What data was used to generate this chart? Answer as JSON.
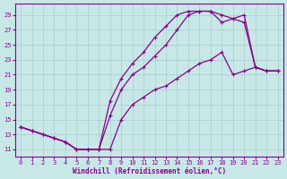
{
  "xlabel": "Windchill (Refroidissement éolien,°C)",
  "xlim": [
    -0.5,
    23.5
  ],
  "ylim": [
    10.0,
    30.5
  ],
  "xticks": [
    0,
    1,
    2,
    3,
    4,
    5,
    6,
    7,
    8,
    9,
    10,
    11,
    12,
    13,
    14,
    15,
    16,
    17,
    18,
    19,
    20,
    21,
    22,
    23
  ],
  "yticks": [
    11,
    13,
    15,
    17,
    19,
    21,
    23,
    25,
    27,
    29
  ],
  "bg_color": "#c8e8e8",
  "grid_color": "#a8cccc",
  "line_color": "#880088",
  "curve_upper_x": [
    0,
    1,
    2,
    3,
    4,
    5,
    6,
    7,
    8,
    9,
    10,
    11,
    12,
    13,
    14,
    15,
    16,
    17,
    18,
    19,
    20,
    21,
    22,
    23
  ],
  "curve_upper_y": [
    14.0,
    13.5,
    13.0,
    12.5,
    12.0,
    11.0,
    11.0,
    11.0,
    17.5,
    20.5,
    22.5,
    24.0,
    26.0,
    27.5,
    29.0,
    29.5,
    29.5,
    29.5,
    29.0,
    28.5,
    29.0,
    22.0,
    21.5,
    21.5
  ],
  "curve_middle_x": [
    0,
    1,
    2,
    3,
    4,
    5,
    6,
    7,
    8,
    9,
    10,
    11,
    12,
    13,
    14,
    15,
    16,
    17,
    18,
    19,
    20,
    21,
    22,
    23
  ],
  "curve_middle_y": [
    14.0,
    13.5,
    13.0,
    12.5,
    12.0,
    11.0,
    11.0,
    11.0,
    15.5,
    19.0,
    21.0,
    22.0,
    23.5,
    25.0,
    27.0,
    29.0,
    29.5,
    29.5,
    28.0,
    28.5,
    28.0,
    22.0,
    21.5,
    21.5
  ],
  "curve_lower_x": [
    0,
    1,
    2,
    3,
    4,
    5,
    6,
    7,
    8,
    9,
    10,
    11,
    12,
    13,
    14,
    15,
    16,
    17,
    18,
    19,
    20,
    21,
    22,
    23
  ],
  "curve_lower_y": [
    14.0,
    13.5,
    13.0,
    12.5,
    12.0,
    11.0,
    11.0,
    11.0,
    11.0,
    15.0,
    17.0,
    18.0,
    19.0,
    19.5,
    20.5,
    21.5,
    22.5,
    23.0,
    24.0,
    21.0,
    21.5,
    22.0,
    21.5,
    21.5
  ]
}
